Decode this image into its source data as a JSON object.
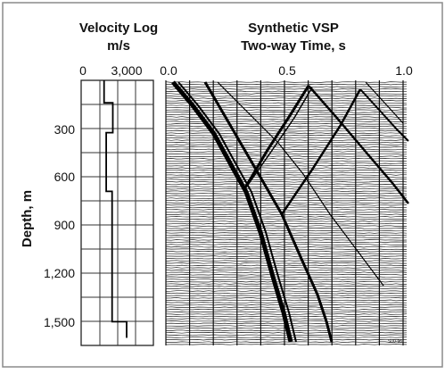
{
  "velocity_log": {
    "title": "Velocity Log",
    "unit": "m/s",
    "ticks": [
      "0",
      "3,000"
    ],
    "profile_ms": [
      {
        "from_m": 0,
        "to_m": 140,
        "velocity": 1450
      },
      {
        "from_m": 140,
        "to_m": 325,
        "velocity": 2050
      },
      {
        "from_m": 325,
        "to_m": 690,
        "velocity": 1600
      },
      {
        "from_m": 690,
        "to_m": 1500,
        "velocity": 2000
      },
      {
        "from_m": 1500,
        "to_m": 1600,
        "velocity": 3000
      }
    ]
  },
  "vsp": {
    "title": "Synthetic VSP",
    "subtitle": "Two-way Time, s",
    "ticks": [
      "0.0",
      "0.5",
      "1.0"
    ],
    "watermark": "S00-96"
  },
  "depth_axis": {
    "label": "Depth, m",
    "ticks": [
      "300",
      "600",
      "900",
      "1,200",
      "1,500"
    ]
  },
  "colors": {
    "ink": "#111111",
    "border": "#888888",
    "background": "#ffffff"
  }
}
